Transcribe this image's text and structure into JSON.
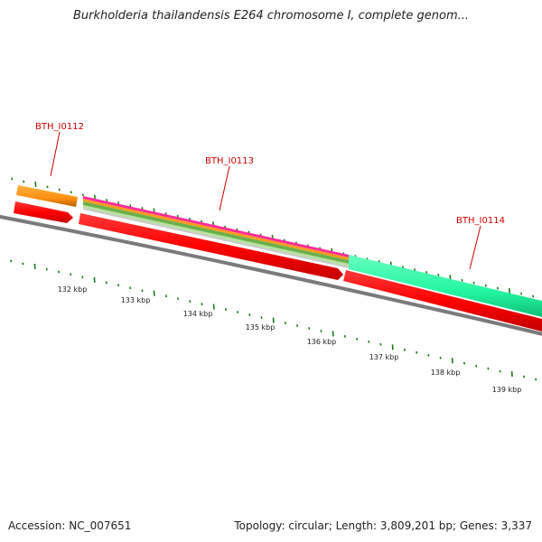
{
  "header": {
    "title": "Burkholderia thailandensis E264 chromosome I, complete genom..."
  },
  "footer": {
    "accession": "Accession: NC_007651",
    "summary": "Topology: circular; Length: 3,809,201 bp; Genes: 3,337"
  },
  "genes": [
    {
      "label": "BTH_I0112",
      "color": "#cc0000"
    },
    {
      "label": "BTH_I0113",
      "color": "#cc0000"
    },
    {
      "label": "BTH_I0114",
      "color": "#cc0000"
    }
  ],
  "ruler": {
    "ticks": [
      "132 kbp",
      "133 kbp",
      "134 kbp",
      "135 kbp",
      "136 kbp",
      "137 kbp",
      "138 kbp",
      "139 kbp"
    ]
  },
  "colors": {
    "backbone": "#7a7a7a",
    "cds": "#ff0000",
    "orange_feature": "#ff9a1e",
    "teal_feature": "#33ffaa",
    "tick": "#1a7a1a"
  }
}
